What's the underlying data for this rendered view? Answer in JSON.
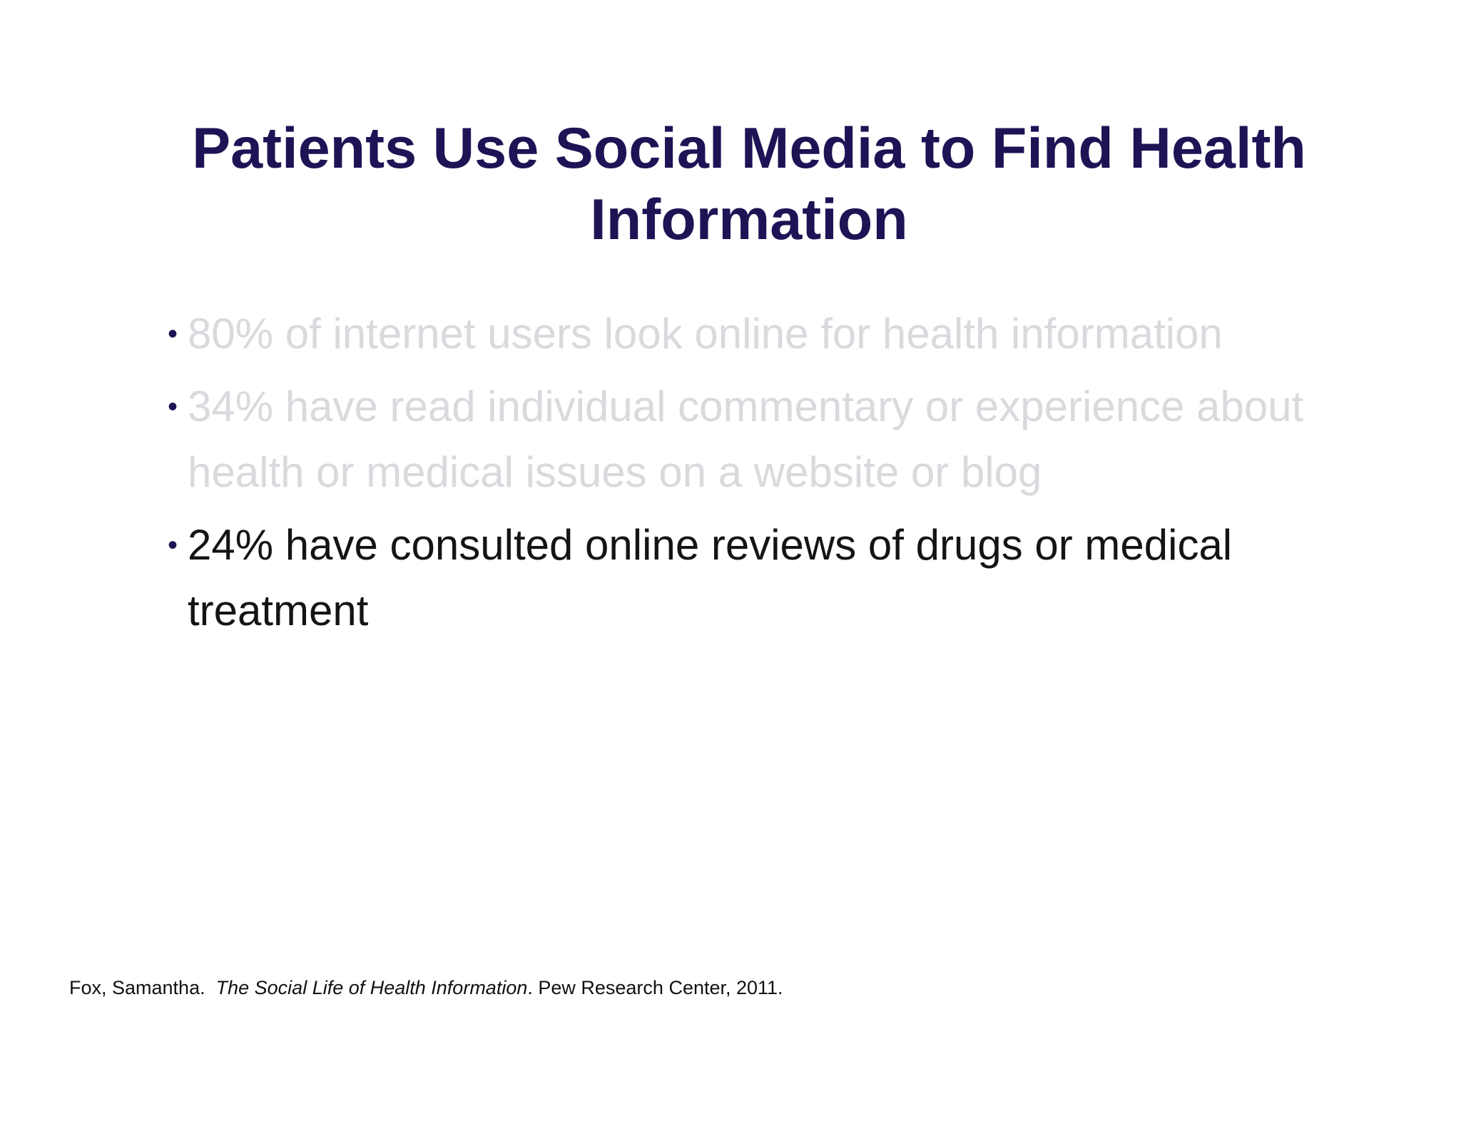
{
  "slide": {
    "title": "Patients Use Social Media to Find Health Information",
    "bullet_symbol": "•",
    "bullets": [
      {
        "text": "80% of internet users look online for health information",
        "state": "dimmed"
      },
      {
        "text": "34% have read individual commentary or experience about health or medical issues on a website or blog",
        "state": "dimmed"
      },
      {
        "text": "24% have consulted online reviews of drugs or medical treatment",
        "state": "active"
      }
    ],
    "citation": {
      "author": "Fox, Samantha.",
      "work_title": "The Social Life of Health Information",
      "rest": ". Pew Research Center, 2011."
    },
    "colors": {
      "title": "#1d1455",
      "bullet_dot": "#1d1455",
      "dimmed_text": "#d9d9de",
      "active_text": "#141414"
    }
  }
}
